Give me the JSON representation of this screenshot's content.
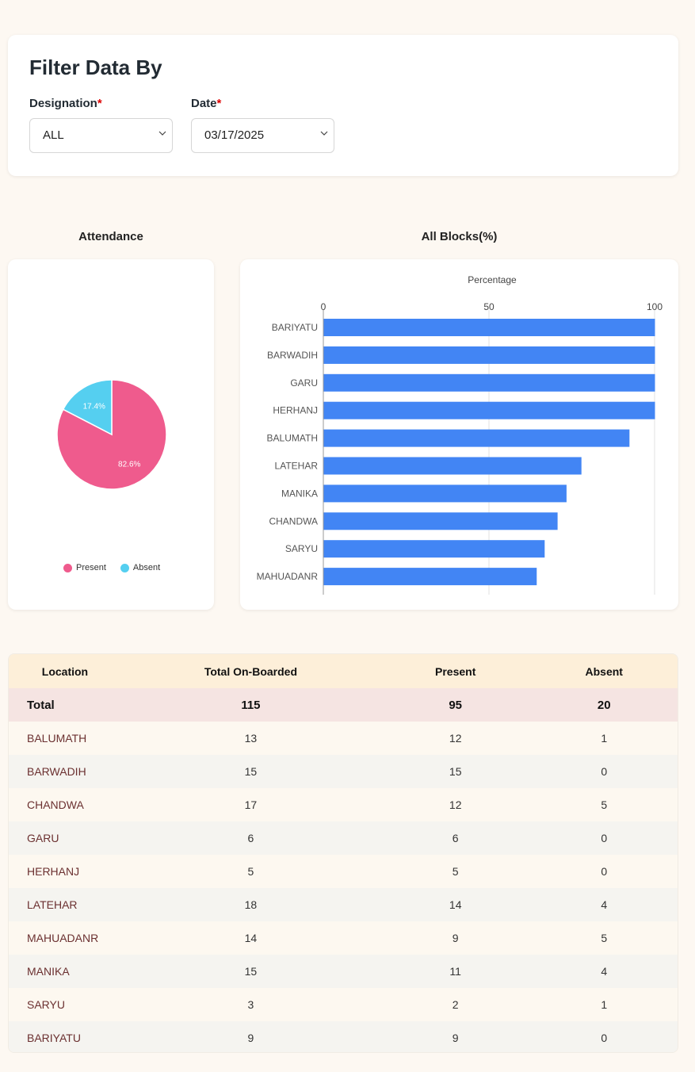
{
  "filter": {
    "title": "Filter Data By",
    "designation_label": "Designation",
    "designation_value": "ALL",
    "date_label": "Date",
    "date_value": "03/17/2025",
    "required_mark": "*"
  },
  "attendance": {
    "title": "Attendance",
    "legend": [
      "Present",
      "Absent"
    ],
    "colors": {
      "present": "#ef5b8d",
      "absent": "#55cff0"
    }
  },
  "blocks": {
    "title": "All Blocks(%)",
    "bar_color": "#4285f4"
  },
  "chart_data": [
    {
      "type": "pie",
      "title": "",
      "labels": [
        "Present",
        "Absent"
      ],
      "values": [
        82.6,
        17.4
      ],
      "slice_labels": [
        "82.6%",
        "17.4%"
      ]
    },
    {
      "type": "bar",
      "orientation": "horizontal",
      "title": "",
      "xlabel": "Percentage",
      "xlim": [
        0,
        100
      ],
      "xticks": [
        "0",
        "50",
        "100"
      ],
      "categories": [
        "BARIYATU",
        "BARWADIH",
        "GARU",
        "HERHANJ",
        "BALUMATH",
        "LATEHAR",
        "MANIKA",
        "CHANDWA",
        "SARYU",
        "MAHUADANR"
      ],
      "values": [
        100,
        100,
        100,
        100,
        92.3,
        77.8,
        73.3,
        70.6,
        66.7,
        64.3
      ]
    }
  ],
  "table": {
    "headers": [
      "Location",
      "Total On-Boarded",
      "Present",
      "Absent"
    ],
    "total": {
      "loc": "Total",
      "onboarded": "115",
      "present": "95",
      "absent": "20"
    },
    "rows": [
      {
        "loc": "BALUMATH",
        "onboarded": "13",
        "present": "12",
        "absent": "1"
      },
      {
        "loc": "BARWADIH",
        "onboarded": "15",
        "present": "15",
        "absent": "0"
      },
      {
        "loc": "CHANDWA",
        "onboarded": "17",
        "present": "12",
        "absent": "5"
      },
      {
        "loc": "GARU",
        "onboarded": "6",
        "present": "6",
        "absent": "0"
      },
      {
        "loc": "HERHANJ",
        "onboarded": "5",
        "present": "5",
        "absent": "0"
      },
      {
        "loc": "LATEHAR",
        "onboarded": "18",
        "present": "14",
        "absent": "4"
      },
      {
        "loc": "MAHUADANR",
        "onboarded": "14",
        "present": "9",
        "absent": "5"
      },
      {
        "loc": "MANIKA",
        "onboarded": "15",
        "present": "11",
        "absent": "4"
      },
      {
        "loc": "SARYU",
        "onboarded": "3",
        "present": "2",
        "absent": "1"
      },
      {
        "loc": "BARIYATU",
        "onboarded": "9",
        "present": "9",
        "absent": "0"
      }
    ]
  }
}
